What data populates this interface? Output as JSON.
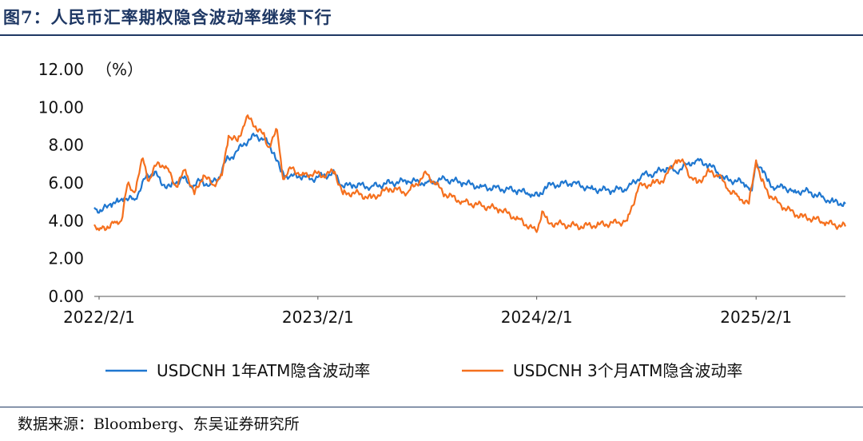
{
  "figure": {
    "title": "图7：人民币汇率期权隐含波动率继续下行",
    "source": "数据来源：Bloomberg、东吴证券研究所"
  },
  "chart_data": {
    "type": "line",
    "title": "",
    "xlabel": "",
    "ylabel": "",
    "y_unit_label": "（%）",
    "ylim": [
      0,
      12
    ],
    "yticks": [
      "0.00",
      "2.00",
      "4.00",
      "6.00",
      "8.00",
      "10.00",
      "12.00"
    ],
    "xlim": [
      "2022-01-24",
      "2025-06-30"
    ],
    "xticks": [
      {
        "date": "2022-02-01",
        "label": "2022/2/1"
      },
      {
        "date": "2023-02-01",
        "label": "2023/2/1"
      },
      {
        "date": "2024-02-01",
        "label": "2024/2/1"
      },
      {
        "date": "2025-02-01",
        "label": "2025/2/1"
      }
    ],
    "grid": false,
    "legend_position": "bottom",
    "series": [
      {
        "name": "USDCNH 1年ATM隐含波动率",
        "color": "#1f77d0",
        "points": [
          [
            "2022-01-24",
            4.7
          ],
          [
            "2022-02-05",
            4.5
          ],
          [
            "2022-02-20",
            4.9
          ],
          [
            "2022-03-05",
            5.0
          ],
          [
            "2022-03-15",
            5.2
          ],
          [
            "2022-04-01",
            5.1
          ],
          [
            "2022-04-20",
            6.3
          ],
          [
            "2022-05-05",
            6.6
          ],
          [
            "2022-05-15",
            6.0
          ],
          [
            "2022-06-01",
            5.8
          ],
          [
            "2022-06-20",
            6.3
          ],
          [
            "2022-07-05",
            5.8
          ],
          [
            "2022-07-20",
            6.1
          ],
          [
            "2022-08-05",
            5.9
          ],
          [
            "2022-08-20",
            6.3
          ],
          [
            "2022-09-01",
            7.2
          ],
          [
            "2022-09-15",
            7.5
          ],
          [
            "2022-10-01",
            8.1
          ],
          [
            "2022-10-20",
            8.5
          ],
          [
            "2022-11-05",
            8.3
          ],
          [
            "2022-11-20",
            7.6
          ],
          [
            "2022-12-01",
            6.6
          ],
          [
            "2022-12-15",
            6.3
          ],
          [
            "2023-01-01",
            6.4
          ],
          [
            "2023-01-20",
            6.2
          ],
          [
            "2023-02-10",
            6.4
          ],
          [
            "2023-03-01",
            6.5
          ],
          [
            "2023-03-15",
            5.8
          ],
          [
            "2023-04-01",
            5.9
          ],
          [
            "2023-05-01",
            5.8
          ],
          [
            "2023-06-01",
            6.0
          ],
          [
            "2023-07-01",
            6.1
          ],
          [
            "2023-08-01",
            6.0
          ],
          [
            "2023-09-01",
            6.2
          ],
          [
            "2023-10-01",
            6.0
          ],
          [
            "2023-11-01",
            5.8
          ],
          [
            "2023-12-01",
            5.7
          ],
          [
            "2024-01-01",
            5.6
          ],
          [
            "2024-01-20",
            5.4
          ],
          [
            "2024-02-05",
            5.3
          ],
          [
            "2024-02-15",
            5.8
          ],
          [
            "2024-03-01",
            5.9
          ],
          [
            "2024-04-01",
            6.0
          ],
          [
            "2024-05-01",
            5.7
          ],
          [
            "2024-06-01",
            5.6
          ],
          [
            "2024-07-01",
            5.7
          ],
          [
            "2024-07-25",
            6.4
          ],
          [
            "2024-08-15",
            6.5
          ],
          [
            "2024-09-05",
            6.8
          ],
          [
            "2024-09-20",
            6.6
          ],
          [
            "2024-10-10",
            7.0
          ],
          [
            "2024-10-25",
            7.2
          ],
          [
            "2024-11-10",
            7.0
          ],
          [
            "2024-11-25",
            6.7
          ],
          [
            "2024-12-10",
            6.2
          ],
          [
            "2025-01-01",
            6.1
          ],
          [
            "2025-01-15",
            5.9
          ],
          [
            "2025-01-25",
            5.6
          ],
          [
            "2025-02-01",
            7.1
          ],
          [
            "2025-02-10",
            6.8
          ],
          [
            "2025-02-20",
            6.1
          ],
          [
            "2025-03-05",
            5.7
          ],
          [
            "2025-03-20",
            5.8
          ],
          [
            "2025-04-05",
            5.5
          ],
          [
            "2025-04-20",
            5.6
          ],
          [
            "2025-05-10",
            5.4
          ],
          [
            "2025-05-25",
            5.2
          ],
          [
            "2025-06-10",
            5.0
          ],
          [
            "2025-06-30",
            4.9
          ]
        ]
      },
      {
        "name": "USDCNH 3个月ATM隐含波动率",
        "color": "#f5701e",
        "points": [
          [
            "2022-01-24",
            3.8
          ],
          [
            "2022-02-01",
            3.5
          ],
          [
            "2022-02-15",
            3.7
          ],
          [
            "2022-03-01",
            3.9
          ],
          [
            "2022-03-10",
            4.0
          ],
          [
            "2022-03-20",
            5.9
          ],
          [
            "2022-04-01",
            5.5
          ],
          [
            "2022-04-15",
            7.3
          ],
          [
            "2022-04-25",
            6.1
          ],
          [
            "2022-05-10",
            7.1
          ],
          [
            "2022-05-25",
            6.8
          ],
          [
            "2022-06-10",
            5.8
          ],
          [
            "2022-06-25",
            6.7
          ],
          [
            "2022-07-10",
            5.4
          ],
          [
            "2022-07-25",
            6.4
          ],
          [
            "2022-08-10",
            5.9
          ],
          [
            "2022-08-25",
            6.4
          ],
          [
            "2022-09-05",
            8.5
          ],
          [
            "2022-09-20",
            8.2
          ],
          [
            "2022-10-05",
            9.5
          ],
          [
            "2022-10-20",
            9.0
          ],
          [
            "2022-11-01",
            8.6
          ],
          [
            "2022-11-10",
            7.9
          ],
          [
            "2022-11-25",
            8.8
          ],
          [
            "2022-12-05",
            6.2
          ],
          [
            "2022-12-20",
            6.8
          ],
          [
            "2023-01-05",
            6.4
          ],
          [
            "2023-01-25",
            6.5
          ],
          [
            "2023-02-10",
            6.4
          ],
          [
            "2023-03-01",
            6.6
          ],
          [
            "2023-03-15",
            5.4
          ],
          [
            "2023-04-01",
            5.5
          ],
          [
            "2023-05-01",
            5.2
          ],
          [
            "2023-06-01",
            5.7
          ],
          [
            "2023-07-01",
            5.5
          ],
          [
            "2023-08-01",
            6.5
          ],
          [
            "2023-09-01",
            5.4
          ],
          [
            "2023-10-01",
            5.0
          ],
          [
            "2023-11-01",
            4.8
          ],
          [
            "2023-12-01",
            4.6
          ],
          [
            "2024-01-01",
            4.1
          ],
          [
            "2024-01-20",
            3.7
          ],
          [
            "2024-02-01",
            3.4
          ],
          [
            "2024-02-10",
            4.5
          ],
          [
            "2024-02-20",
            3.9
          ],
          [
            "2024-03-15",
            3.8
          ],
          [
            "2024-04-15",
            3.7
          ],
          [
            "2024-05-15",
            3.8
          ],
          [
            "2024-06-15",
            3.9
          ],
          [
            "2024-07-01",
            4.0
          ],
          [
            "2024-07-20",
            5.8
          ],
          [
            "2024-08-15",
            6.0
          ],
          [
            "2024-09-01",
            6.2
          ],
          [
            "2024-09-20",
            7.2
          ],
          [
            "2024-10-05",
            7.0
          ],
          [
            "2024-10-15",
            6.3
          ],
          [
            "2024-10-25",
            6.0
          ],
          [
            "2024-11-15",
            6.6
          ],
          [
            "2024-12-01",
            6.4
          ],
          [
            "2024-12-15",
            5.7
          ],
          [
            "2025-01-01",
            5.3
          ],
          [
            "2025-01-20",
            4.9
          ],
          [
            "2025-02-01",
            7.2
          ],
          [
            "2025-02-10",
            6.1
          ],
          [
            "2025-02-25",
            5.3
          ],
          [
            "2025-03-15",
            4.8
          ],
          [
            "2025-04-05",
            4.4
          ],
          [
            "2025-04-20",
            4.2
          ],
          [
            "2025-05-10",
            4.1
          ],
          [
            "2025-05-25",
            3.9
          ],
          [
            "2025-06-10",
            3.8
          ],
          [
            "2025-06-30",
            3.7
          ]
        ]
      }
    ]
  }
}
